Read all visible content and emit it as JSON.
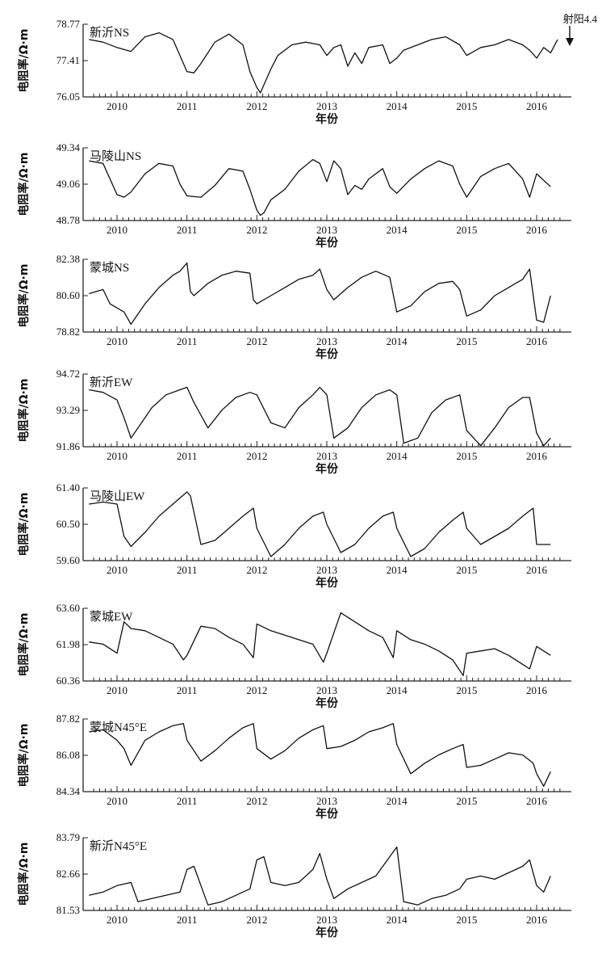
{
  "chart_data": [
    {
      "type": "line",
      "title": "新沂NS",
      "ylabel": "电阻率/Ω·m",
      "xlabel": "年份",
      "x_ticks": [
        "2010",
        "2011",
        "2012",
        "2013",
        "2014",
        "2015",
        "2016"
      ],
      "y_ticks": [
        "76.05",
        "77.41",
        "78.77"
      ],
      "ylim": [
        76.05,
        78.77
      ],
      "xlim": [
        2009.6,
        2016.4
      ],
      "annotation": "射阳4.4",
      "series": [
        {
          "x": [
            2009.6,
            2009.8,
            2010.0,
            2010.2,
            2010.4,
            2010.6,
            2010.8,
            2010.9,
            2011.0,
            2011.1,
            2011.2,
            2011.4,
            2011.6,
            2011.8,
            2011.9,
            2012.0,
            2012.05,
            2012.1,
            2012.2,
            2012.3,
            2012.5,
            2012.7,
            2012.9,
            2013.0,
            2013.1,
            2013.2,
            2013.3,
            2013.4,
            2013.5,
            2013.6,
            2013.8,
            2013.9,
            2014.0,
            2014.1,
            2014.3,
            2014.5,
            2014.7,
            2014.9,
            2015.0,
            2015.2,
            2015.4,
            2015.6,
            2015.8,
            2015.9,
            2016.0,
            2016.1,
            2016.2,
            2016.3
          ],
          "y": [
            78.2,
            78.1,
            77.9,
            77.75,
            78.3,
            78.45,
            78.2,
            77.6,
            77.0,
            76.95,
            77.3,
            78.1,
            78.4,
            78.0,
            77.0,
            76.4,
            76.2,
            76.5,
            77.1,
            77.6,
            78.0,
            78.1,
            78.0,
            77.6,
            77.9,
            78.0,
            77.2,
            77.7,
            77.3,
            77.9,
            78.0,
            77.3,
            77.5,
            77.8,
            78.0,
            78.2,
            78.3,
            78.0,
            77.6,
            77.9,
            78.0,
            78.2,
            78.0,
            77.8,
            77.5,
            77.9,
            77.7,
            78.2
          ]
        }
      ]
    },
    {
      "type": "line",
      "title": "马陵山NS",
      "ylabel": "电阻率/Ω·m",
      "xlabel": "年份",
      "x_ticks": [
        "2010",
        "2011",
        "2012",
        "2013",
        "2014",
        "2015",
        "2016"
      ],
      "y_ticks": [
        "48.78",
        "49.06",
        "49.34"
      ],
      "ylim": [
        48.78,
        49.34
      ],
      "xlim": [
        2009.6,
        2016.4
      ],
      "series": [
        {
          "x": [
            2009.6,
            2009.8,
            2010.0,
            2010.1,
            2010.2,
            2010.4,
            2010.6,
            2010.8,
            2010.9,
            2011.0,
            2011.2,
            2011.4,
            2011.6,
            2011.8,
            2011.9,
            2012.0,
            2012.05,
            2012.1,
            2012.2,
            2012.4,
            2012.6,
            2012.8,
            2012.9,
            2013.0,
            2013.1,
            2013.2,
            2013.3,
            2013.4,
            2013.5,
            2013.6,
            2013.8,
            2013.9,
            2014.0,
            2014.2,
            2014.4,
            2014.6,
            2014.8,
            2014.9,
            2015.0,
            2015.2,
            2015.4,
            2015.6,
            2015.8,
            2015.9,
            2016.0,
            2016.2
          ],
          "y": [
            49.24,
            49.22,
            48.98,
            48.96,
            49.0,
            49.14,
            49.22,
            49.2,
            49.06,
            48.97,
            48.96,
            49.05,
            49.18,
            49.16,
            49.02,
            48.86,
            48.82,
            48.84,
            48.94,
            49.02,
            49.16,
            49.25,
            49.22,
            49.08,
            49.24,
            49.18,
            48.98,
            49.05,
            49.02,
            49.1,
            49.18,
            49.04,
            48.99,
            49.1,
            49.18,
            49.24,
            49.2,
            49.06,
            48.96,
            49.12,
            49.18,
            49.22,
            49.1,
            48.96,
            49.14,
            49.04
          ]
        }
      ]
    },
    {
      "type": "line",
      "title": "蒙城NS",
      "ylabel": "电阻率/Ω·m",
      "xlabel": "年份",
      "x_ticks": [
        "2010",
        "2011",
        "2012",
        "2013",
        "2014",
        "2015",
        "2016"
      ],
      "y_ticks": [
        "78.82",
        "80.60",
        "82.38"
      ],
      "ylim": [
        78.82,
        82.38
      ],
      "xlim": [
        2009.6,
        2016.4
      ],
      "series": [
        {
          "x": [
            2009.6,
            2009.8,
            2009.9,
            2010.0,
            2010.1,
            2010.2,
            2010.4,
            2010.6,
            2010.8,
            2010.9,
            2011.0,
            2011.05,
            2011.1,
            2011.3,
            2011.5,
            2011.7,
            2011.9,
            2011.95,
            2012.0,
            2012.2,
            2012.4,
            2012.6,
            2012.8,
            2012.9,
            2013.0,
            2013.1,
            2013.3,
            2013.5,
            2013.7,
            2013.9,
            2014.0,
            2014.2,
            2014.4,
            2014.6,
            2014.8,
            2014.9,
            2015.0,
            2015.2,
            2015.4,
            2015.6,
            2015.8,
            2015.9,
            2016.0,
            2016.1,
            2016.2
          ],
          "y": [
            80.7,
            80.9,
            80.2,
            80.0,
            79.8,
            79.2,
            80.2,
            81.0,
            81.6,
            81.8,
            82.2,
            80.8,
            80.6,
            81.2,
            81.6,
            81.8,
            81.7,
            80.4,
            80.2,
            80.6,
            81.0,
            81.4,
            81.6,
            81.9,
            80.9,
            80.4,
            81.0,
            81.5,
            81.8,
            81.5,
            79.8,
            80.1,
            80.8,
            81.2,
            81.3,
            80.9,
            79.6,
            79.9,
            80.6,
            81.0,
            81.4,
            81.9,
            79.4,
            79.3,
            80.6
          ]
        }
      ]
    },
    {
      "type": "line",
      "title": "新沂EW",
      "ylabel": "电阻率/Ω·m",
      "xlabel": "年份",
      "x_ticks": [
        "2010",
        "2011",
        "2012",
        "2013",
        "2014",
        "2015",
        "2016"
      ],
      "y_ticks": [
        "91.86",
        "93.29",
        "94.72"
      ],
      "ylim": [
        91.86,
        94.72
      ],
      "xlim": [
        2009.6,
        2016.4
      ],
      "series": [
        {
          "x": [
            2009.6,
            2009.8,
            2010.0,
            2010.1,
            2010.2,
            2010.3,
            2010.5,
            2010.7,
            2010.9,
            2011.0,
            2011.1,
            2011.3,
            2011.5,
            2011.7,
            2011.9,
            2012.0,
            2012.2,
            2012.4,
            2012.6,
            2012.8,
            2012.9,
            2013.0,
            2013.1,
            2013.3,
            2013.5,
            2013.7,
            2013.9,
            2014.0,
            2014.1,
            2014.3,
            2014.5,
            2014.7,
            2014.9,
            2015.0,
            2015.2,
            2015.4,
            2015.6,
            2015.8,
            2015.9,
            2016.0,
            2016.1,
            2016.2
          ],
          "y": [
            94.1,
            94.0,
            93.7,
            93.0,
            92.2,
            92.6,
            93.4,
            93.9,
            94.1,
            94.2,
            93.6,
            92.6,
            93.3,
            93.8,
            94.0,
            93.9,
            92.8,
            92.6,
            93.4,
            93.9,
            94.2,
            93.9,
            92.2,
            92.6,
            93.4,
            93.9,
            94.1,
            93.9,
            92.0,
            92.2,
            93.2,
            93.7,
            93.9,
            92.5,
            91.9,
            92.6,
            93.4,
            93.8,
            93.8,
            92.4,
            91.9,
            92.2
          ]
        }
      ]
    },
    {
      "type": "line",
      "title": "马陵山EW",
      "ylabel": "电阻率/Ω·m",
      "xlabel": "年份",
      "x_ticks": [
        "2010",
        "2011",
        "2012",
        "2013",
        "2014",
        "2015",
        "2016"
      ],
      "y_ticks": [
        "59.60",
        "60.50",
        "61.40"
      ],
      "ylim": [
        59.6,
        61.4
      ],
      "xlim": [
        2009.6,
        2016.4
      ],
      "series": [
        {
          "x": [
            2009.6,
            2009.8,
            2010.0,
            2010.1,
            2010.2,
            2010.4,
            2010.6,
            2010.8,
            2011.0,
            2011.05,
            2011.2,
            2011.4,
            2011.6,
            2011.8,
            2011.95,
            2012.0,
            2012.2,
            2012.4,
            2012.6,
            2012.8,
            2012.95,
            2013.0,
            2013.2,
            2013.4,
            2013.6,
            2013.8,
            2013.95,
            2014.0,
            2014.2,
            2014.4,
            2014.6,
            2014.8,
            2014.95,
            2015.0,
            2015.2,
            2015.4,
            2015.6,
            2015.8,
            2015.95,
            2016.0,
            2016.2
          ],
          "y": [
            61.0,
            61.05,
            61.0,
            60.2,
            59.95,
            60.3,
            60.7,
            61.0,
            61.3,
            61.2,
            60.0,
            60.1,
            60.4,
            60.7,
            60.9,
            60.4,
            59.7,
            60.0,
            60.4,
            60.7,
            60.8,
            60.5,
            59.8,
            60.0,
            60.4,
            60.7,
            60.8,
            60.4,
            59.7,
            59.9,
            60.3,
            60.6,
            60.8,
            60.4,
            60.0,
            60.2,
            60.4,
            60.7,
            60.9,
            60.0,
            60.0
          ]
        }
      ]
    },
    {
      "type": "line",
      "title": "蒙城EW",
      "ylabel": "电阻率/Ω·m",
      "xlabel": "年份",
      "x_ticks": [
        "2010",
        "2011",
        "2012",
        "2013",
        "2014",
        "2015",
        "2016"
      ],
      "y_ticks": [
        "60.36",
        "61.98",
        "63.60"
      ],
      "ylim": [
        60.36,
        63.6
      ],
      "xlim": [
        2009.6,
        2016.4
      ],
      "series": [
        {
          "x": [
            2009.6,
            2009.8,
            2010.0,
            2010.1,
            2010.2,
            2010.4,
            2010.6,
            2010.8,
            2010.95,
            2011.0,
            2011.2,
            2011.4,
            2011.6,
            2011.8,
            2011.95,
            2012.0,
            2012.2,
            2012.4,
            2012.6,
            2012.8,
            2012.95,
            2013.0,
            2013.2,
            2013.4,
            2013.6,
            2013.8,
            2013.95,
            2014.0,
            2014.2,
            2014.4,
            2014.6,
            2014.8,
            2014.95,
            2015.0,
            2015.2,
            2015.4,
            2015.6,
            2015.8,
            2015.9,
            2016.0,
            2016.2
          ],
          "y": [
            62.1,
            62.0,
            61.6,
            63.0,
            62.7,
            62.6,
            62.3,
            62.0,
            61.3,
            61.5,
            62.8,
            62.7,
            62.3,
            62.0,
            61.4,
            62.9,
            62.6,
            62.4,
            62.2,
            62.0,
            61.2,
            61.6,
            63.4,
            63.0,
            62.6,
            62.3,
            61.4,
            62.6,
            62.2,
            62.0,
            61.7,
            61.3,
            60.6,
            61.6,
            61.7,
            61.8,
            61.5,
            61.1,
            60.9,
            61.9,
            61.5
          ]
        }
      ]
    },
    {
      "type": "line",
      "title": "蒙城N45°E",
      "ylabel": "电阻率/Ω·m",
      "xlabel": "年份",
      "x_ticks": [
        "2010",
        "2011",
        "2012",
        "2013",
        "2014",
        "2015",
        "2016"
      ],
      "y_ticks": [
        "84.34",
        "86.08",
        "87.82"
      ],
      "ylim": [
        84.34,
        87.82
      ],
      "xlim": [
        2009.6,
        2016.4
      ],
      "series": [
        {
          "x": [
            2009.6,
            2009.8,
            2010.0,
            2010.1,
            2010.2,
            2010.4,
            2010.6,
            2010.8,
            2010.95,
            2011.0,
            2011.2,
            2011.4,
            2011.6,
            2011.8,
            2011.95,
            2012.0,
            2012.2,
            2012.4,
            2012.6,
            2012.8,
            2012.95,
            2013.0,
            2013.2,
            2013.4,
            2013.6,
            2013.8,
            2013.95,
            2014.0,
            2014.2,
            2014.4,
            2014.6,
            2014.8,
            2014.95,
            2015.0,
            2015.2,
            2015.4,
            2015.6,
            2015.8,
            2015.95,
            2016.0,
            2016.1,
            2016.2
          ],
          "y": [
            87.2,
            87.3,
            86.8,
            86.4,
            85.6,
            86.8,
            87.2,
            87.5,
            87.6,
            86.8,
            85.8,
            86.3,
            86.9,
            87.4,
            87.6,
            86.4,
            85.9,
            86.3,
            86.9,
            87.3,
            87.5,
            86.4,
            86.5,
            86.8,
            87.2,
            87.4,
            87.6,
            86.6,
            85.2,
            85.7,
            86.1,
            86.4,
            86.6,
            85.5,
            85.6,
            85.9,
            86.2,
            86.1,
            85.7,
            85.2,
            84.6,
            85.3
          ]
        }
      ]
    },
    {
      "type": "line",
      "title": "新沂N45°E",
      "ylabel": "电阻率/Ω·m",
      "xlabel": "年份",
      "x_ticks": [
        "2010",
        "2011",
        "2012",
        "2013",
        "2014",
        "2015",
        "2016"
      ],
      "y_ticks": [
        "81.53",
        "82.66",
        "83.79"
      ],
      "ylim": [
        81.53,
        83.79
      ],
      "xlim": [
        2009.6,
        2016.4
      ],
      "series": [
        {
          "x": [
            2009.6,
            2009.8,
            2010.0,
            2010.2,
            2010.3,
            2010.5,
            2010.7,
            2010.9,
            2011.0,
            2011.1,
            2011.3,
            2011.5,
            2011.7,
            2011.9,
            2012.0,
            2012.1,
            2012.2,
            2012.4,
            2012.6,
            2012.8,
            2012.9,
            2013.0,
            2013.1,
            2013.3,
            2013.5,
            2013.7,
            2013.9,
            2014.0,
            2014.1,
            2014.3,
            2014.5,
            2014.7,
            2014.9,
            2015.0,
            2015.2,
            2015.4,
            2015.6,
            2015.8,
            2015.9,
            2016.0,
            2016.1,
            2016.2
          ],
          "y": [
            82.0,
            82.1,
            82.3,
            82.4,
            81.8,
            81.9,
            82.0,
            82.1,
            82.8,
            82.9,
            81.7,
            81.8,
            82.0,
            82.2,
            83.1,
            83.2,
            82.4,
            82.3,
            82.4,
            82.8,
            83.3,
            82.5,
            81.9,
            82.2,
            82.4,
            82.6,
            83.2,
            83.5,
            81.8,
            81.7,
            81.9,
            82.0,
            82.2,
            82.5,
            82.6,
            82.5,
            82.7,
            82.9,
            83.1,
            82.3,
            82.1,
            82.6
          ]
        }
      ]
    }
  ]
}
